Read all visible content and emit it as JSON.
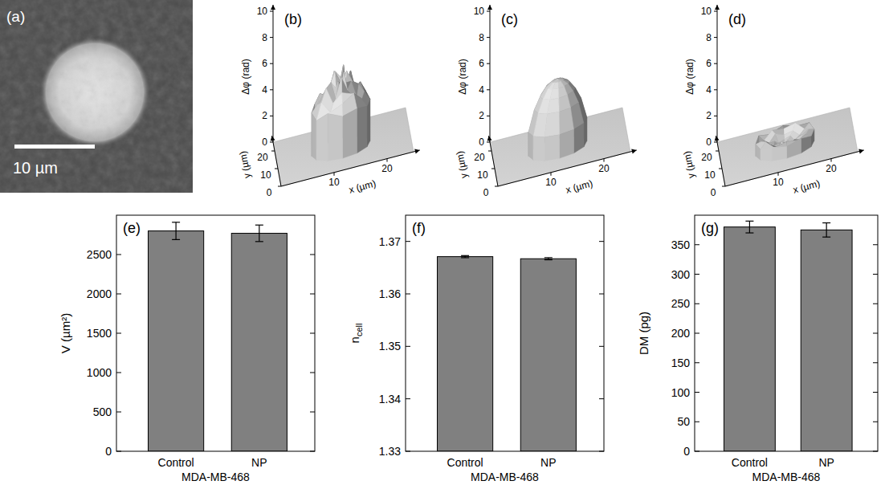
{
  "chart_data": [
    {
      "type": "image",
      "panel_label": "(a)",
      "field_width": 24,
      "cell_diameter": 13,
      "cell_center": [
        11.8,
        11.5
      ],
      "scale_bar": {
        "length": 10,
        "label": "10 µm"
      }
    },
    {
      "type": "surface",
      "panel_label": "(b)",
      "xlabel": "x (µm)",
      "ylabel": "y (µm)",
      "zlabel": "Δφ (rad)",
      "xlim": [
        0,
        25
      ],
      "ylim": [
        0,
        25
      ],
      "zlim": [
        0,
        10
      ],
      "xticks": [
        10,
        20
      ],
      "yticks": [
        0,
        10,
        20
      ],
      "zticks": [
        0,
        2,
        4,
        6,
        8,
        10
      ],
      "center": [
        12,
        12
      ],
      "radius": 5.5,
      "heights": [
        [
          5.0,
          5.0,
          5.0,
          5.0,
          5.0,
          5.0,
          5.0,
          5.0,
          5.0,
          5.0,
          5.0,
          5.0
        ],
        [
          5.8,
          4.6,
          6.2,
          5.1,
          4.4,
          5.5,
          6.0,
          4.8,
          5.3,
          4.5,
          5.9,
          5.0
        ],
        [
          4.9,
          5.6,
          4.3,
          5.2,
          5.8,
          4.5,
          4.9,
          5.4,
          4.2,
          5.7,
          4.6,
          5.1
        ],
        [
          4.6,
          4.0,
          5.0,
          4.3,
          4.8,
          4.1,
          4.5,
          5.1,
          4.0,
          4.7,
          4.4,
          3.9
        ],
        [
          3.9,
          4.4,
          3.6,
          4.1,
          3.7,
          4.3,
          3.8,
          4.2,
          3.5,
          4.0,
          4.5,
          3.7
        ],
        [
          3.2,
          3.6,
          3.0,
          3.4,
          3.1,
          3.5,
          3.3,
          3.0,
          3.6,
          3.2,
          3.4,
          3.1
        ]
      ]
    },
    {
      "type": "surface",
      "panel_label": "(c)",
      "xlabel": "x (µm)",
      "ylabel": "y (µm)",
      "zlabel": "Δφ (rad)",
      "xlim": [
        0,
        25
      ],
      "ylim": [
        0,
        25
      ],
      "zlim": [
        0,
        10
      ],
      "xticks": [
        10,
        20
      ],
      "yticks": [
        0,
        10,
        20
      ],
      "zticks": [
        0,
        2,
        4,
        6,
        8,
        10
      ],
      "center": [
        12,
        12
      ],
      "radius": 5.5,
      "heights": [
        [
          5.3,
          5.3,
          5.3,
          5.3,
          5.3,
          5.3,
          5.3,
          5.3,
          5.3,
          5.3,
          5.3,
          5.3
        ],
        [
          5.2,
          5.2,
          5.2,
          5.2,
          5.2,
          5.2,
          5.2,
          5.2,
          5.2,
          5.2,
          5.2,
          5.2
        ],
        [
          4.9,
          4.9,
          4.9,
          4.9,
          4.9,
          4.9,
          4.9,
          4.9,
          4.9,
          4.9,
          4.9,
          4.9
        ],
        [
          4.3,
          4.3,
          4.3,
          4.3,
          4.3,
          4.3,
          4.3,
          4.3,
          4.3,
          4.3,
          4.3,
          4.3
        ],
        [
          3.4,
          3.4,
          3.4,
          3.4,
          3.4,
          3.4,
          3.4,
          3.4,
          3.4,
          3.4,
          3.4,
          3.4
        ],
        [
          1.8,
          1.8,
          1.8,
          1.8,
          1.8,
          1.8,
          1.8,
          1.8,
          1.8,
          1.8,
          1.8,
          1.8
        ]
      ]
    },
    {
      "type": "surface",
      "panel_label": "(d)",
      "xlabel": "x (µm)",
      "ylabel": "y (µm)",
      "zlabel": "Δφ (rad)",
      "xlim": [
        0,
        25
      ],
      "ylim": [
        0,
        25
      ],
      "zlim": [
        0,
        10
      ],
      "xticks": [
        10,
        20
      ],
      "yticks": [
        0,
        10,
        20
      ],
      "zticks": [
        0,
        2,
        4,
        6,
        8,
        10
      ],
      "center": [
        12,
        12
      ],
      "radius": 5.5,
      "heights": [
        [
          0.3,
          0.3,
          0.3,
          0.3,
          0.3,
          0.3,
          0.3,
          0.3,
          0.3,
          0.3,
          0.3,
          0.3
        ],
        [
          0.4,
          0.2,
          0.5,
          0.3,
          0.4,
          0.2,
          0.5,
          0.3,
          0.2,
          0.4,
          0.3,
          0.5
        ],
        [
          0.5,
          0.3,
          0.6,
          0.4,
          0.3,
          0.6,
          0.4,
          0.5,
          0.3,
          0.6,
          0.4,
          0.3
        ],
        [
          0.7,
          0.5,
          0.8,
          0.6,
          0.9,
          0.5,
          0.7,
          0.8,
          0.6,
          0.5,
          0.9,
          0.6
        ],
        [
          1.0,
          0.8,
          1.2,
          0.9,
          1.1,
          0.7,
          1.0,
          1.2,
          0.8,
          1.1,
          0.9,
          1.0
        ],
        [
          0.9,
          1.1,
          0.8,
          1.0,
          0.7,
          1.1,
          0.9,
          0.8,
          1.0,
          0.9,
          1.1,
          0.8
        ]
      ]
    },
    {
      "type": "bar",
      "panel_label": "(e)",
      "categories": [
        "Control",
        "NP"
      ],
      "values": [
        2800,
        2770
      ],
      "errors": [
        110,
        105
      ],
      "color": "#808080",
      "ylim": [
        0,
        3000
      ],
      "yticks": [
        0,
        500,
        1000,
        1500,
        2000,
        2500
      ],
      "ylabel": "V (µm²)",
      "xlabel": "MDA-MB-468"
    },
    {
      "type": "bar",
      "panel_label": "(f)",
      "categories": [
        "Control",
        "NP"
      ],
      "values": [
        1.3671,
        1.3667
      ],
      "errors": [
        0.0002,
        0.0002
      ],
      "color": "#808080",
      "ylim": [
        1.33,
        1.375
      ],
      "yticks": [
        1.33,
        1.34,
        1.35,
        1.36,
        1.37
      ],
      "ylabel": "n",
      "ylabel_subscript": "cell",
      "xlabel": "MDA-MB-468"
    },
    {
      "type": "bar",
      "panel_label": "(g)",
      "categories": [
        "Control",
        "NP"
      ],
      "values": [
        380,
        375
      ],
      "errors": [
        10,
        12
      ],
      "color": "#808080",
      "ylim": [
        0,
        400
      ],
      "yticks": [
        0,
        50,
        100,
        150,
        200,
        250,
        300,
        350
      ],
      "ylabel": "DM (pg)",
      "xlabel": "MDA-MB-468"
    }
  ]
}
